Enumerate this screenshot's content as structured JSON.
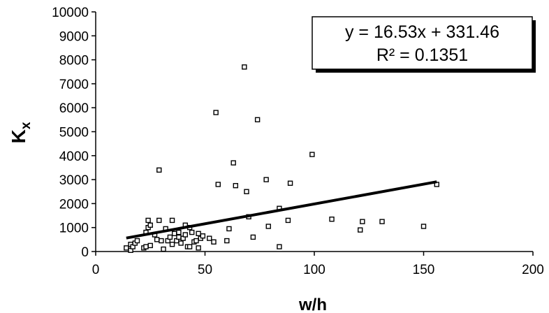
{
  "chart_data": {
    "type": "scatter",
    "title": "",
    "xlabel": "w/h",
    "ylabel_main": "K",
    "ylabel_sub": "x",
    "xlim": [
      0,
      200
    ],
    "ylim": [
      0,
      10000
    ],
    "x_ticks": [
      0,
      50,
      100,
      150,
      200
    ],
    "y_ticks": [
      0,
      1000,
      2000,
      3000,
      4000,
      5000,
      6000,
      7000,
      8000,
      9000,
      10000
    ],
    "grid": false,
    "legend": "none",
    "marker": "open-square",
    "colors": {
      "marker": "#000000",
      "trendline": "#000000",
      "axis": "#000000"
    },
    "points": [
      {
        "x": 14,
        "y": 150
      },
      {
        "x": 16,
        "y": 300
      },
      {
        "x": 16,
        "y": 50
      },
      {
        "x": 17,
        "y": 200
      },
      {
        "x": 18,
        "y": 350
      },
      {
        "x": 19,
        "y": 450
      },
      {
        "x": 22,
        "y": 150
      },
      {
        "x": 23,
        "y": 200
      },
      {
        "x": 23,
        "y": 800
      },
      {
        "x": 24,
        "y": 1000
      },
      {
        "x": 24,
        "y": 1300
      },
      {
        "x": 25,
        "y": 1100
      },
      {
        "x": 25,
        "y": 250
      },
      {
        "x": 27,
        "y": 700
      },
      {
        "x": 28,
        "y": 500
      },
      {
        "x": 29,
        "y": 1300
      },
      {
        "x": 29,
        "y": 3400
      },
      {
        "x": 30,
        "y": 450
      },
      {
        "x": 31,
        "y": 100
      },
      {
        "x": 32,
        "y": 950
      },
      {
        "x": 33,
        "y": 450
      },
      {
        "x": 34,
        "y": 600
      },
      {
        "x": 35,
        "y": 300
      },
      {
        "x": 35,
        "y": 1300
      },
      {
        "x": 36,
        "y": 750
      },
      {
        "x": 37,
        "y": 450
      },
      {
        "x": 38,
        "y": 600
      },
      {
        "x": 38,
        "y": 800
      },
      {
        "x": 39,
        "y": 350
      },
      {
        "x": 40,
        "y": 550
      },
      {
        "x": 41,
        "y": 700
      },
      {
        "x": 41,
        "y": 1100
      },
      {
        "x": 42,
        "y": 200
      },
      {
        "x": 43,
        "y": 1000
      },
      {
        "x": 43,
        "y": 200
      },
      {
        "x": 44,
        "y": 800
      },
      {
        "x": 45,
        "y": 400
      },
      {
        "x": 46,
        "y": 450
      },
      {
        "x": 47,
        "y": 150
      },
      {
        "x": 47,
        "y": 750
      },
      {
        "x": 48,
        "y": 550
      },
      {
        "x": 49,
        "y": 650
      },
      {
        "x": 52,
        "y": 550
      },
      {
        "x": 54,
        "y": 400
      },
      {
        "x": 55,
        "y": 5800
      },
      {
        "x": 56,
        "y": 2800
      },
      {
        "x": 60,
        "y": 450
      },
      {
        "x": 61,
        "y": 950
      },
      {
        "x": 63,
        "y": 3700
      },
      {
        "x": 64,
        "y": 2750
      },
      {
        "x": 68,
        "y": 7700
      },
      {
        "x": 69,
        "y": 2500
      },
      {
        "x": 70,
        "y": 1450
      },
      {
        "x": 72,
        "y": 600
      },
      {
        "x": 74,
        "y": 5500
      },
      {
        "x": 78,
        "y": 3000
      },
      {
        "x": 79,
        "y": 1050
      },
      {
        "x": 84,
        "y": 1800
      },
      {
        "x": 84,
        "y": 200
      },
      {
        "x": 88,
        "y": 1300
      },
      {
        "x": 89,
        "y": 2850
      },
      {
        "x": 99,
        "y": 4050
      },
      {
        "x": 108,
        "y": 1350
      },
      {
        "x": 121,
        "y": 900
      },
      {
        "x": 122,
        "y": 1250
      },
      {
        "x": 131,
        "y": 1250
      },
      {
        "x": 150,
        "y": 1050
      },
      {
        "x": 156,
        "y": 2800
      }
    ],
    "trendline": {
      "equation": "y = 16.53x + 331.46",
      "r_squared": "R² = 0.1351",
      "slope": 16.53,
      "intercept": 331.46,
      "x_range": [
        14,
        156
      ]
    }
  }
}
